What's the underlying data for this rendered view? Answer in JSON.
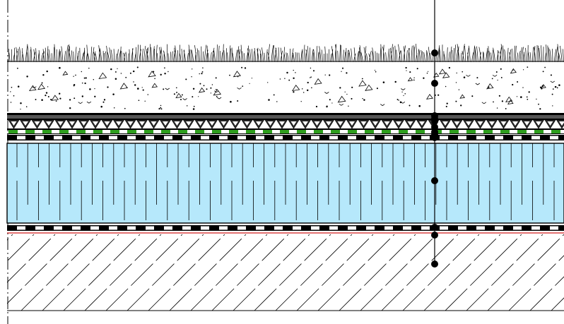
{
  "drawing": {
    "type": "green-roof-section-detail",
    "colors": {
      "background": "#ffffff",
      "line": "#000000",
      "insulation_fill": "#b6e8fb",
      "filter_green": "#2e9e1e",
      "vapour_red": "#d21f1f",
      "drainage_dark": "#2a2a2a"
    },
    "layers": [
      {
        "key": "vegetation",
        "pattern": "grass"
      },
      {
        "key": "substrate",
        "pattern": "stipple"
      },
      {
        "key": "drainage",
        "pattern": "triangles"
      },
      {
        "key": "filter",
        "pattern": "dashed-green"
      },
      {
        "key": "waterproofing",
        "pattern": "dashed-black-white"
      },
      {
        "key": "insulation",
        "pattern": "vertical-hatch"
      },
      {
        "key": "vapour-barrier",
        "pattern": "dashed-black-white-red"
      },
      {
        "key": "concrete-slab",
        "pattern": "diagonal-hatch"
      }
    ],
    "leader": {
      "marker_count": 13
    }
  }
}
